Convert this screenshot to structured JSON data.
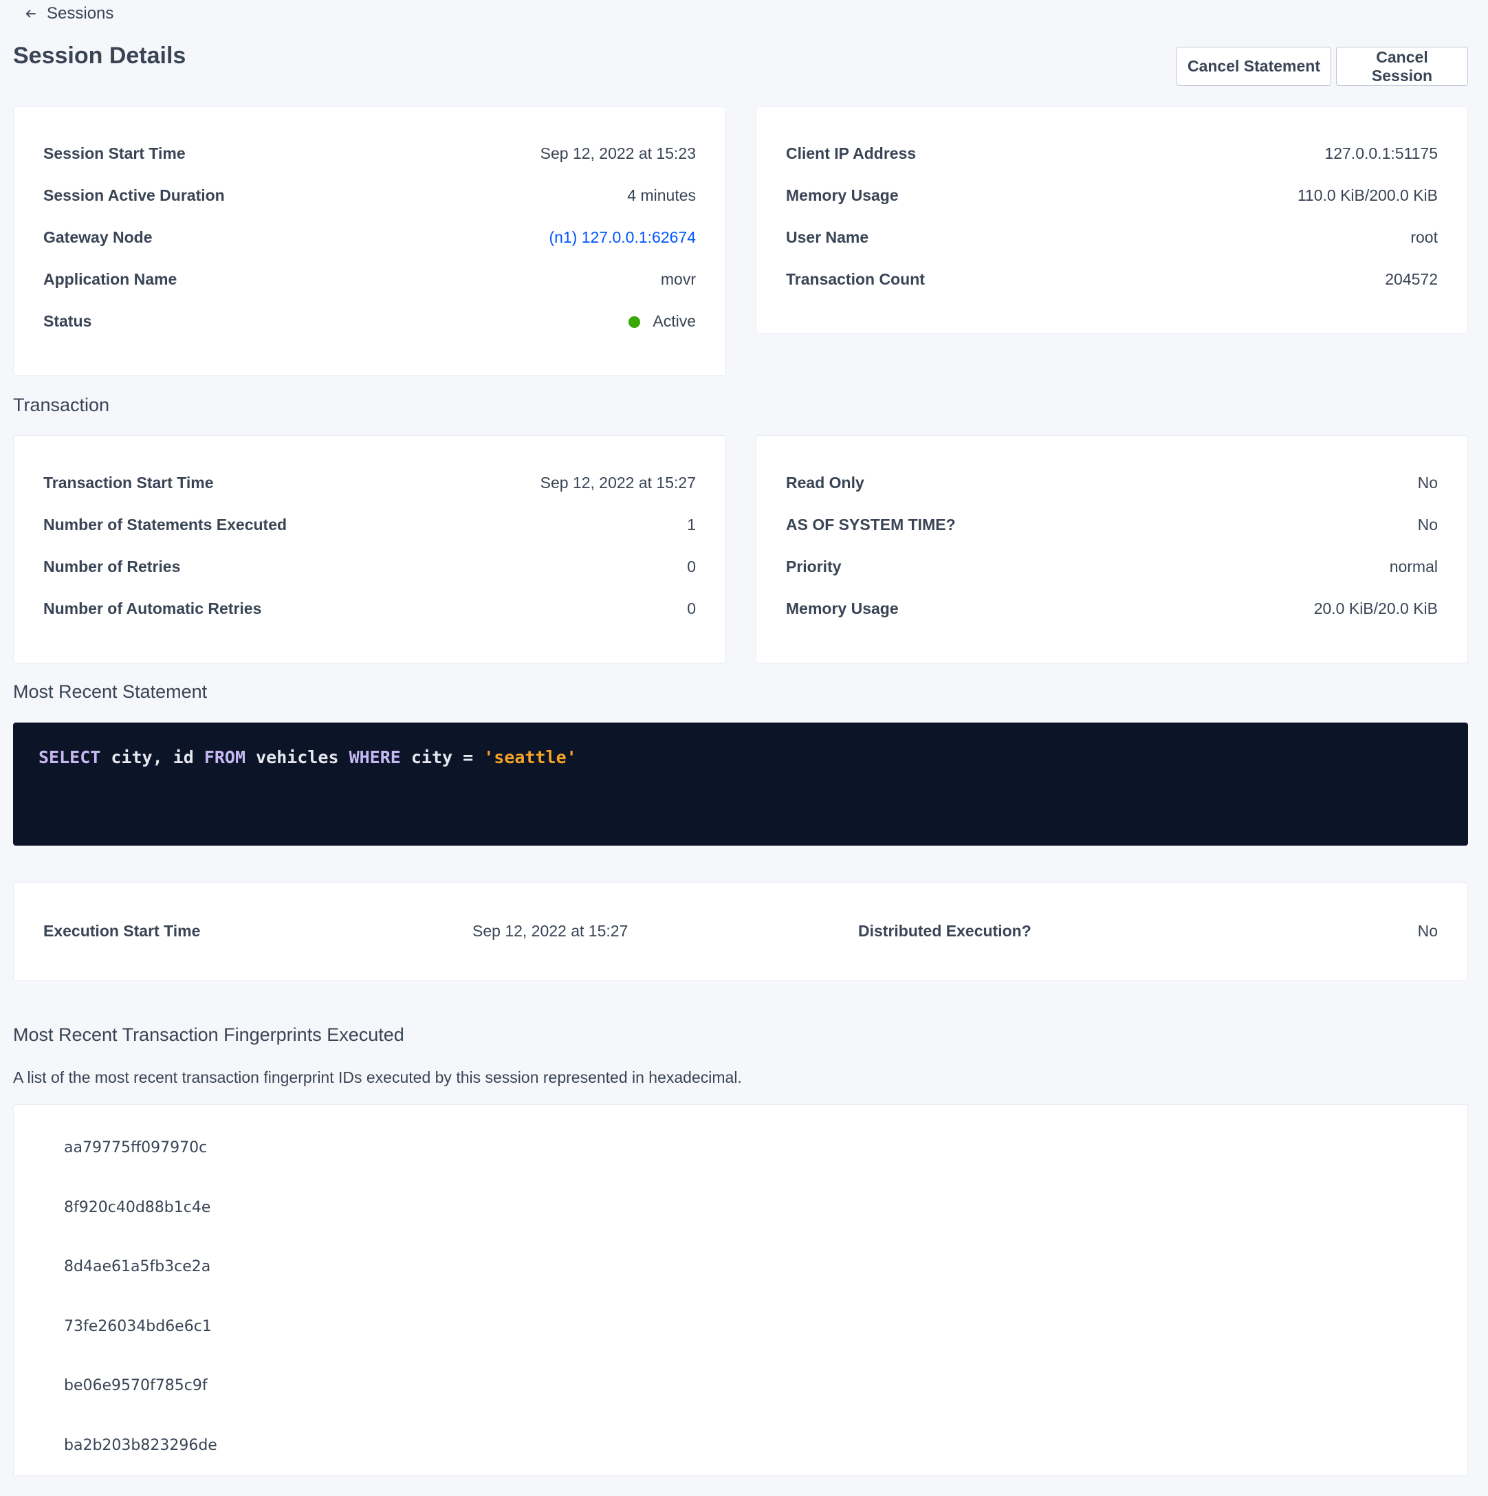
{
  "breadcrumb": {
    "back_label": "Sessions",
    "icon": "arrow-left-icon"
  },
  "header": {
    "title": "Session Details",
    "cancel_statement": "Cancel Statement",
    "cancel_session": "Cancel Session"
  },
  "session_left": [
    {
      "label": "Session Start Time",
      "value": "Sep 12, 2022 at 15:23"
    },
    {
      "label": "Session Active Duration",
      "value": "4 minutes"
    },
    {
      "label": "Gateway Node",
      "value": "(n1) 127.0.0.1:62674"
    },
    {
      "label": "Application Name",
      "value": "movr"
    },
    {
      "label": "Status",
      "value": "Active"
    }
  ],
  "session_right": [
    {
      "label": "Client IP Address",
      "value": "127.0.0.1:51175"
    },
    {
      "label": "Memory Usage",
      "value": "110.0 KiB/200.0 KiB"
    },
    {
      "label": "User Name",
      "value": "root"
    },
    {
      "label": "Transaction Count",
      "value": "204572"
    }
  ],
  "transaction": {
    "heading": "Transaction",
    "left": [
      {
        "label": "Transaction Start Time",
        "value": "Sep 12, 2022 at 15:27"
      },
      {
        "label": "Number of Statements Executed",
        "value": "1"
      },
      {
        "label": "Number of Retries",
        "value": "0"
      },
      {
        "label": "Number of Automatic Retries",
        "value": "0"
      }
    ],
    "right": [
      {
        "label": "Read Only",
        "value": "No"
      },
      {
        "label": "AS OF SYSTEM TIME?",
        "value": "No"
      },
      {
        "label": "Priority",
        "value": "normal"
      },
      {
        "label": "Memory Usage",
        "value": "20.0 KiB/20.0 KiB"
      }
    ]
  },
  "statement": {
    "heading": "Most Recent Statement",
    "tokens": [
      "SELECT",
      " city, id ",
      "FROM",
      " vehicles ",
      "WHERE",
      " city = ",
      "'seattle'"
    ],
    "exec_start_label": "Execution Start Time",
    "exec_start_value": "Sep 12, 2022 at 15:27",
    "distributed_label": "Distributed Execution?",
    "distributed_value": "No"
  },
  "fingerprints": {
    "heading": "Most Recent Transaction Fingerprints Executed",
    "description": "A list of the most recent transaction fingerprint IDs executed by this session represented in hexadecimal.",
    "items": [
      "aa79775ff097970c",
      "8f920c40d88b1c4e",
      "8d4ae61a5fb3ce2a",
      "73fe26034bd6e6c1",
      "be06e9570f785c9f",
      "ba2b203b823296de"
    ]
  },
  "colors": {
    "link": "#0055ff",
    "status_active": "#37a806",
    "code_bg": "#0c1427",
    "keyword": "#c7b8f4",
    "string": "#f5a32a"
  }
}
